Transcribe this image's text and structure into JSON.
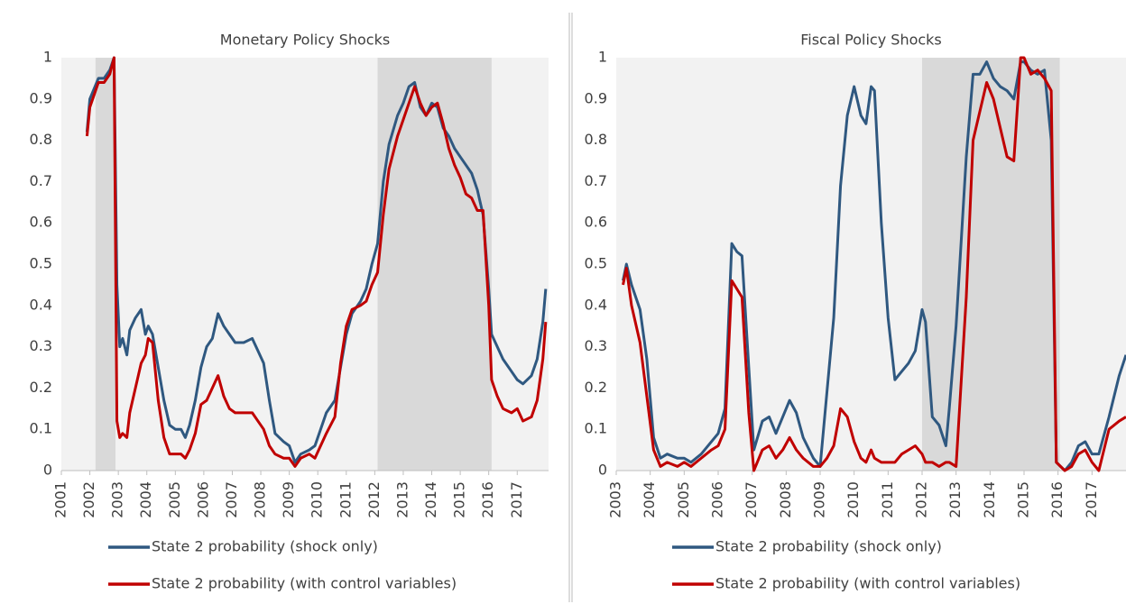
{
  "chart_data": [
    {
      "type": "line",
      "title": "Monetary Policy Shocks",
      "x": [
        2001.9,
        2002.0,
        2002.3,
        2002.5,
        2002.7,
        2002.85,
        2002.95,
        2003.05,
        2003.15,
        2003.3,
        2003.4,
        2003.6,
        2003.8,
        2003.95,
        2004.05,
        2004.2,
        2004.4,
        2004.6,
        2004.8,
        2005.0,
        2005.2,
        2005.35,
        2005.5,
        2005.7,
        2005.9,
        2006.1,
        2006.3,
        2006.5,
        2006.7,
        2006.9,
        2007.1,
        2007.4,
        2007.7,
        2007.9,
        2008.1,
        2008.3,
        2008.5,
        2008.8,
        2009.0,
        2009.2,
        2009.4,
        2009.7,
        2009.9,
        2010.1,
        2010.3,
        2010.6,
        2010.8,
        2011.0,
        2011.2,
        2011.5,
        2011.7,
        2011.9,
        2012.1,
        2012.3,
        2012.5,
        2012.8,
        2013.0,
        2013.2,
        2013.4,
        2013.6,
        2013.8,
        2014.0,
        2014.2,
        2014.4,
        2014.6,
        2014.8,
        2015.0,
        2015.2,
        2015.4,
        2015.6,
        2015.8,
        2016.0,
        2016.1,
        2016.3,
        2016.5,
        2016.8,
        2017.0,
        2017.2,
        2017.5,
        2017.7,
        2017.9,
        2018.0
      ],
      "series": [
        {
          "name": "State 2 probability (shock only)",
          "color": "#2f5880",
          "values": [
            0.82,
            0.9,
            0.95,
            0.95,
            0.97,
            1.0,
            0.45,
            0.3,
            0.32,
            0.28,
            0.34,
            0.37,
            0.39,
            0.33,
            0.35,
            0.33,
            0.25,
            0.17,
            0.11,
            0.1,
            0.1,
            0.08,
            0.11,
            0.17,
            0.25,
            0.3,
            0.32,
            0.38,
            0.35,
            0.33,
            0.31,
            0.31,
            0.32,
            0.29,
            0.26,
            0.17,
            0.09,
            0.07,
            0.06,
            0.02,
            0.04,
            0.05,
            0.06,
            0.1,
            0.14,
            0.17,
            0.25,
            0.33,
            0.38,
            0.41,
            0.44,
            0.5,
            0.55,
            0.7,
            0.79,
            0.86,
            0.89,
            0.93,
            0.94,
            0.88,
            0.86,
            0.89,
            0.88,
            0.83,
            0.81,
            0.78,
            0.76,
            0.74,
            0.72,
            0.68,
            0.62,
            0.44,
            0.33,
            0.3,
            0.27,
            0.24,
            0.22,
            0.21,
            0.23,
            0.27,
            0.36,
            0.44
          ]
        },
        {
          "name": "State 2 probability (with control variables)",
          "color": "#c00000",
          "values": [
            0.81,
            0.88,
            0.94,
            0.94,
            0.96,
            1.0,
            0.12,
            0.08,
            0.09,
            0.08,
            0.14,
            0.2,
            0.26,
            0.28,
            0.32,
            0.31,
            0.17,
            0.08,
            0.04,
            0.04,
            0.04,
            0.03,
            0.05,
            0.09,
            0.16,
            0.17,
            0.2,
            0.23,
            0.18,
            0.15,
            0.14,
            0.14,
            0.14,
            0.12,
            0.1,
            0.06,
            0.04,
            0.03,
            0.03,
            0.01,
            0.03,
            0.04,
            0.03,
            0.06,
            0.09,
            0.13,
            0.26,
            0.35,
            0.39,
            0.4,
            0.41,
            0.45,
            0.48,
            0.62,
            0.73,
            0.81,
            0.85,
            0.89,
            0.93,
            0.89,
            0.86,
            0.88,
            0.89,
            0.84,
            0.78,
            0.74,
            0.71,
            0.67,
            0.66,
            0.63,
            0.63,
            0.4,
            0.22,
            0.18,
            0.15,
            0.14,
            0.15,
            0.12,
            0.13,
            0.17,
            0.27,
            0.36
          ]
        }
      ],
      "shaded": [
        [
          2002.2,
          2002.9
        ],
        [
          2012.1,
          2016.1
        ]
      ],
      "xlim": [
        2001,
        2018.1
      ],
      "ylim": [
        0,
        1
      ],
      "xticks": [
        2001,
        2002,
        2003,
        2004,
        2005,
        2006,
        2007,
        2008,
        2009,
        2010,
        2011,
        2012,
        2013,
        2014,
        2015,
        2016,
        2017
      ],
      "yticks": [
        0,
        0.1,
        0.2,
        0.3,
        0.4,
        0.5,
        0.6,
        0.7,
        0.8,
        0.9,
        1
      ],
      "grid": false,
      "legend": "bottom"
    },
    {
      "type": "line",
      "title": "Fiscal Policy Shocks",
      "x": [
        2003.2,
        2003.3,
        2003.45,
        2003.7,
        2003.9,
        2004.1,
        2004.3,
        2004.5,
        2004.8,
        2005.0,
        2005.2,
        2005.5,
        2005.8,
        2006.0,
        2006.2,
        2006.4,
        2006.55,
        2006.7,
        2006.9,
        2007.05,
        2007.3,
        2007.5,
        2007.7,
        2007.9,
        2008.1,
        2008.3,
        2008.5,
        2008.8,
        2009.0,
        2009.2,
        2009.4,
        2009.6,
        2009.8,
        2010.0,
        2010.2,
        2010.35,
        2010.5,
        2010.6,
        2010.8,
        2011.0,
        2011.2,
        2011.4,
        2011.6,
        2011.8,
        2012.0,
        2012.1,
        2012.3,
        2012.5,
        2012.7,
        2012.8,
        2013.0,
        2013.3,
        2013.5,
        2013.7,
        2013.9,
        2014.1,
        2014.3,
        2014.5,
        2014.7,
        2014.9,
        2015.0,
        2015.2,
        2015.4,
        2015.6,
        2015.8,
        2015.95,
        2016.2,
        2016.4,
        2016.6,
        2016.8,
        2017.0,
        2017.2,
        2017.5,
        2017.8,
        2018.0
      ],
      "series": [
        {
          "name": "State 2 probability (shock only)",
          "color": "#2f5880",
          "values": [
            0.46,
            0.5,
            0.45,
            0.39,
            0.27,
            0.08,
            0.03,
            0.04,
            0.03,
            0.03,
            0.02,
            0.04,
            0.07,
            0.09,
            0.15,
            0.55,
            0.53,
            0.52,
            0.25,
            0.05,
            0.12,
            0.13,
            0.09,
            0.13,
            0.17,
            0.14,
            0.08,
            0.03,
            0.01,
            0.19,
            0.37,
            0.69,
            0.86,
            0.93,
            0.86,
            0.84,
            0.93,
            0.92,
            0.6,
            0.37,
            0.22,
            0.24,
            0.26,
            0.29,
            0.39,
            0.36,
            0.13,
            0.11,
            0.06,
            0.15,
            0.35,
            0.76,
            0.96,
            0.96,
            0.99,
            0.95,
            0.93,
            0.92,
            0.9,
            0.99,
            0.99,
            0.97,
            0.96,
            0.97,
            0.8,
            0.02,
            0.0,
            0.02,
            0.06,
            0.07,
            0.04,
            0.04,
            0.13,
            0.23,
            0.28
          ]
        },
        {
          "name": "State 2 probability (with control variables)",
          "color": "#c00000",
          "values": [
            0.45,
            0.49,
            0.4,
            0.31,
            0.18,
            0.05,
            0.01,
            0.02,
            0.01,
            0.02,
            0.01,
            0.03,
            0.05,
            0.06,
            0.1,
            0.46,
            0.44,
            0.42,
            0.14,
            0.0,
            0.05,
            0.06,
            0.03,
            0.05,
            0.08,
            0.05,
            0.03,
            0.01,
            0.01,
            0.03,
            0.06,
            0.15,
            0.13,
            0.07,
            0.03,
            0.02,
            0.05,
            0.03,
            0.02,
            0.02,
            0.02,
            0.04,
            0.05,
            0.06,
            0.04,
            0.02,
            0.02,
            0.01,
            0.02,
            0.02,
            0.01,
            0.42,
            0.8,
            0.87,
            0.94,
            0.9,
            0.83,
            0.76,
            0.75,
            1.0,
            1.0,
            0.96,
            0.97,
            0.95,
            0.92,
            0.02,
            0.0,
            0.01,
            0.04,
            0.05,
            0.02,
            0.0,
            0.1,
            0.12,
            0.13
          ]
        }
      ],
      "shaded": [
        [
          2012.0,
          2016.05
        ]
      ],
      "xlim": [
        2003,
        2018
      ],
      "ylim": [
        0,
        1
      ],
      "xticks": [
        2003,
        2004,
        2005,
        2006,
        2007,
        2008,
        2009,
        2010,
        2011,
        2012,
        2013,
        2014,
        2015,
        2016,
        2017
      ],
      "yticks": [
        0,
        0.1,
        0.2,
        0.3,
        0.4,
        0.5,
        0.6,
        0.7,
        0.8,
        0.9,
        1
      ],
      "grid": false,
      "legend": "bottom"
    }
  ]
}
